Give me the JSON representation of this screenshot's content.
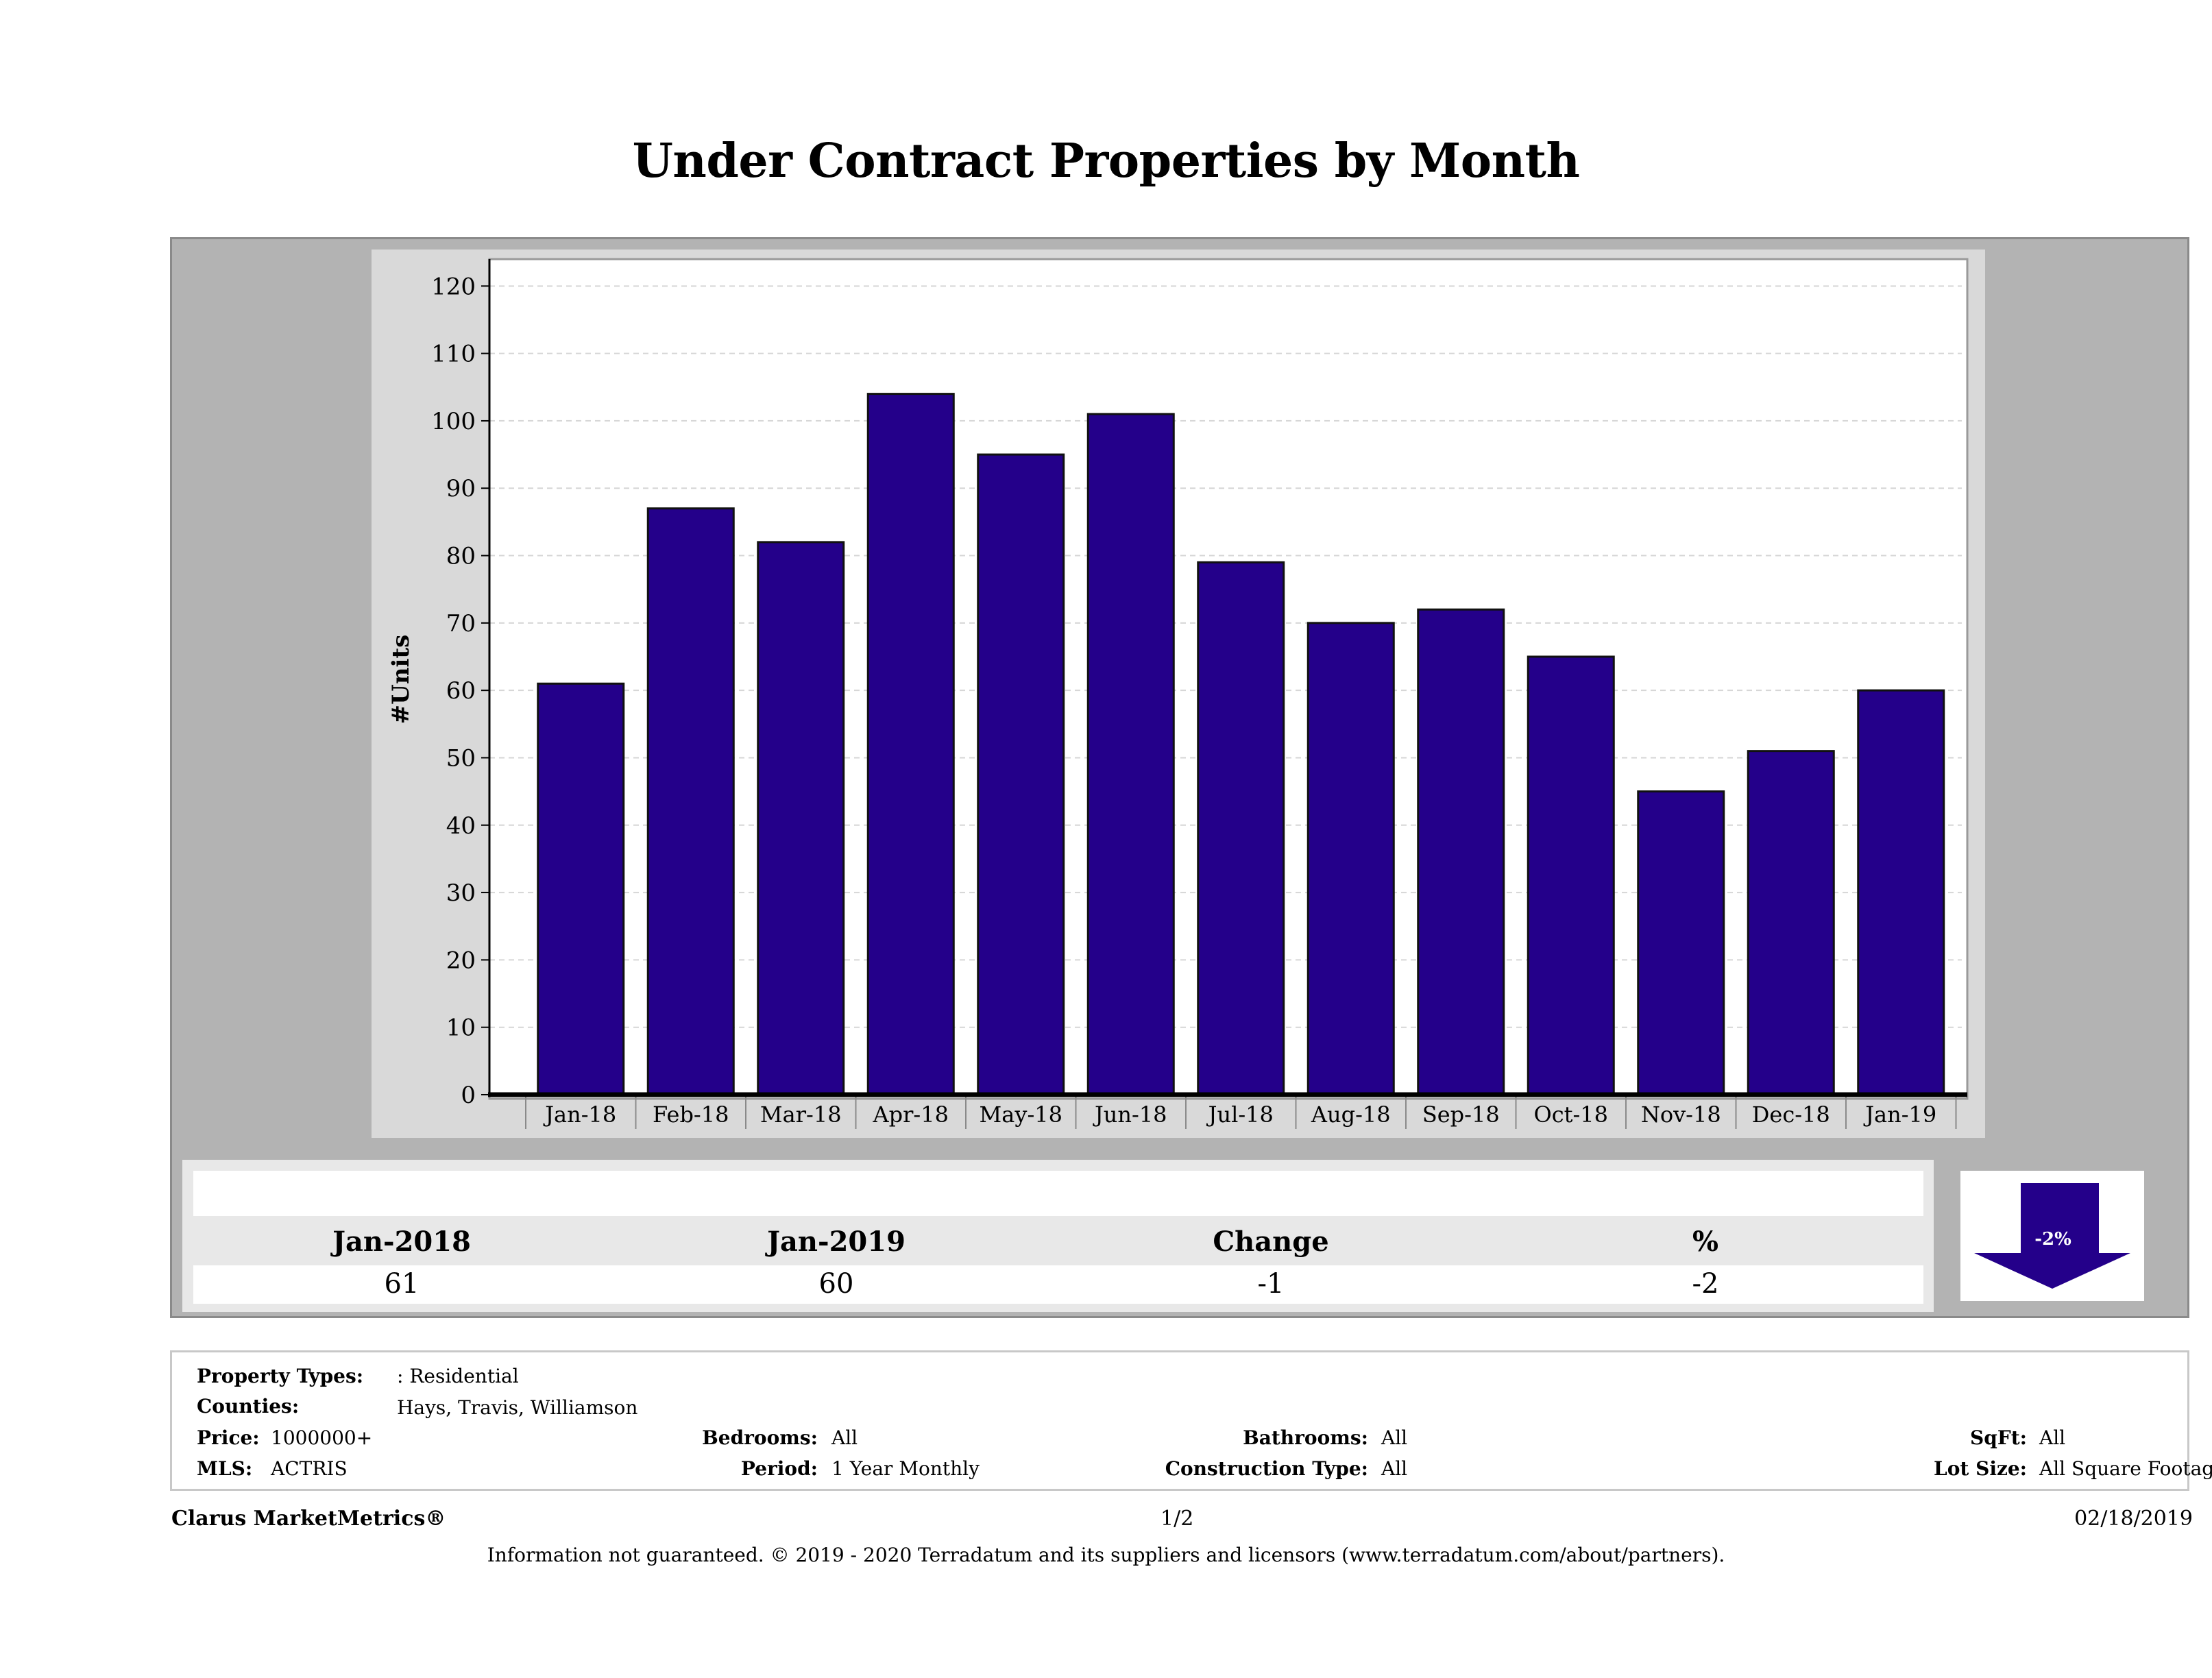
{
  "title": "Under Contract Properties by Month",
  "colors": {
    "bar": "#24008a",
    "panel": "#b3b3b3",
    "plot_bg": "#ffffff",
    "chart_bg": "#d9d9d9"
  },
  "chart_data": {
    "type": "bar",
    "title": "Under Contract Properties by Month",
    "categories": [
      "Jan-18",
      "Feb-18",
      "Mar-18",
      "Apr-18",
      "May-18",
      "Jun-18",
      "Jul-18",
      "Aug-18",
      "Sep-18",
      "Oct-18",
      "Nov-18",
      "Dec-18",
      "Jan-19"
    ],
    "values": [
      61,
      87,
      82,
      104,
      95,
      101,
      79,
      70,
      72,
      65,
      45,
      51,
      60
    ],
    "xlabel": "",
    "ylabel": "#Units",
    "ylim": [
      0,
      124
    ],
    "yticks": [
      0,
      10,
      20,
      30,
      40,
      50,
      60,
      70,
      80,
      90,
      100,
      110,
      120
    ],
    "grid": true,
    "legend": "none"
  },
  "summary": {
    "headers": [
      "Jan-2018",
      "Jan-2019",
      "Change",
      "%"
    ],
    "values": [
      "61",
      "60",
      "-1",
      "-2"
    ],
    "arrow_label": "-2%",
    "arrow_direction": "down"
  },
  "info": {
    "property_types_label": "Property Types:",
    "property_types_value": ": Residential",
    "counties_label": "Counties:",
    "counties_value": "Hays, Travis, Williamson",
    "price_label": "Price:",
    "price_value": "1000000+",
    "bedrooms_label": "Bedrooms:",
    "bedrooms_value": "All",
    "bathrooms_label": "Bathrooms:",
    "bathrooms_value": "All",
    "sqft_label": "SqFt:",
    "sqft_value": "All",
    "mls_label": "MLS:",
    "mls_value": "ACTRIS",
    "period_label": "Period:",
    "period_value": "1 Year Monthly",
    "construction_label": "Construction Type:",
    "construction_value": "All",
    "lot_size_label": "Lot Size:",
    "lot_size_value": "All Square Footage"
  },
  "footer": {
    "brand": "Clarus MarketMetrics®",
    "page": "1/2",
    "date": "02/18/2019",
    "disclaimer": "Information not guaranteed. © 2019 - 2020 Terradatum and its suppliers and licensors (www.terradatum.com/about/partners)."
  }
}
